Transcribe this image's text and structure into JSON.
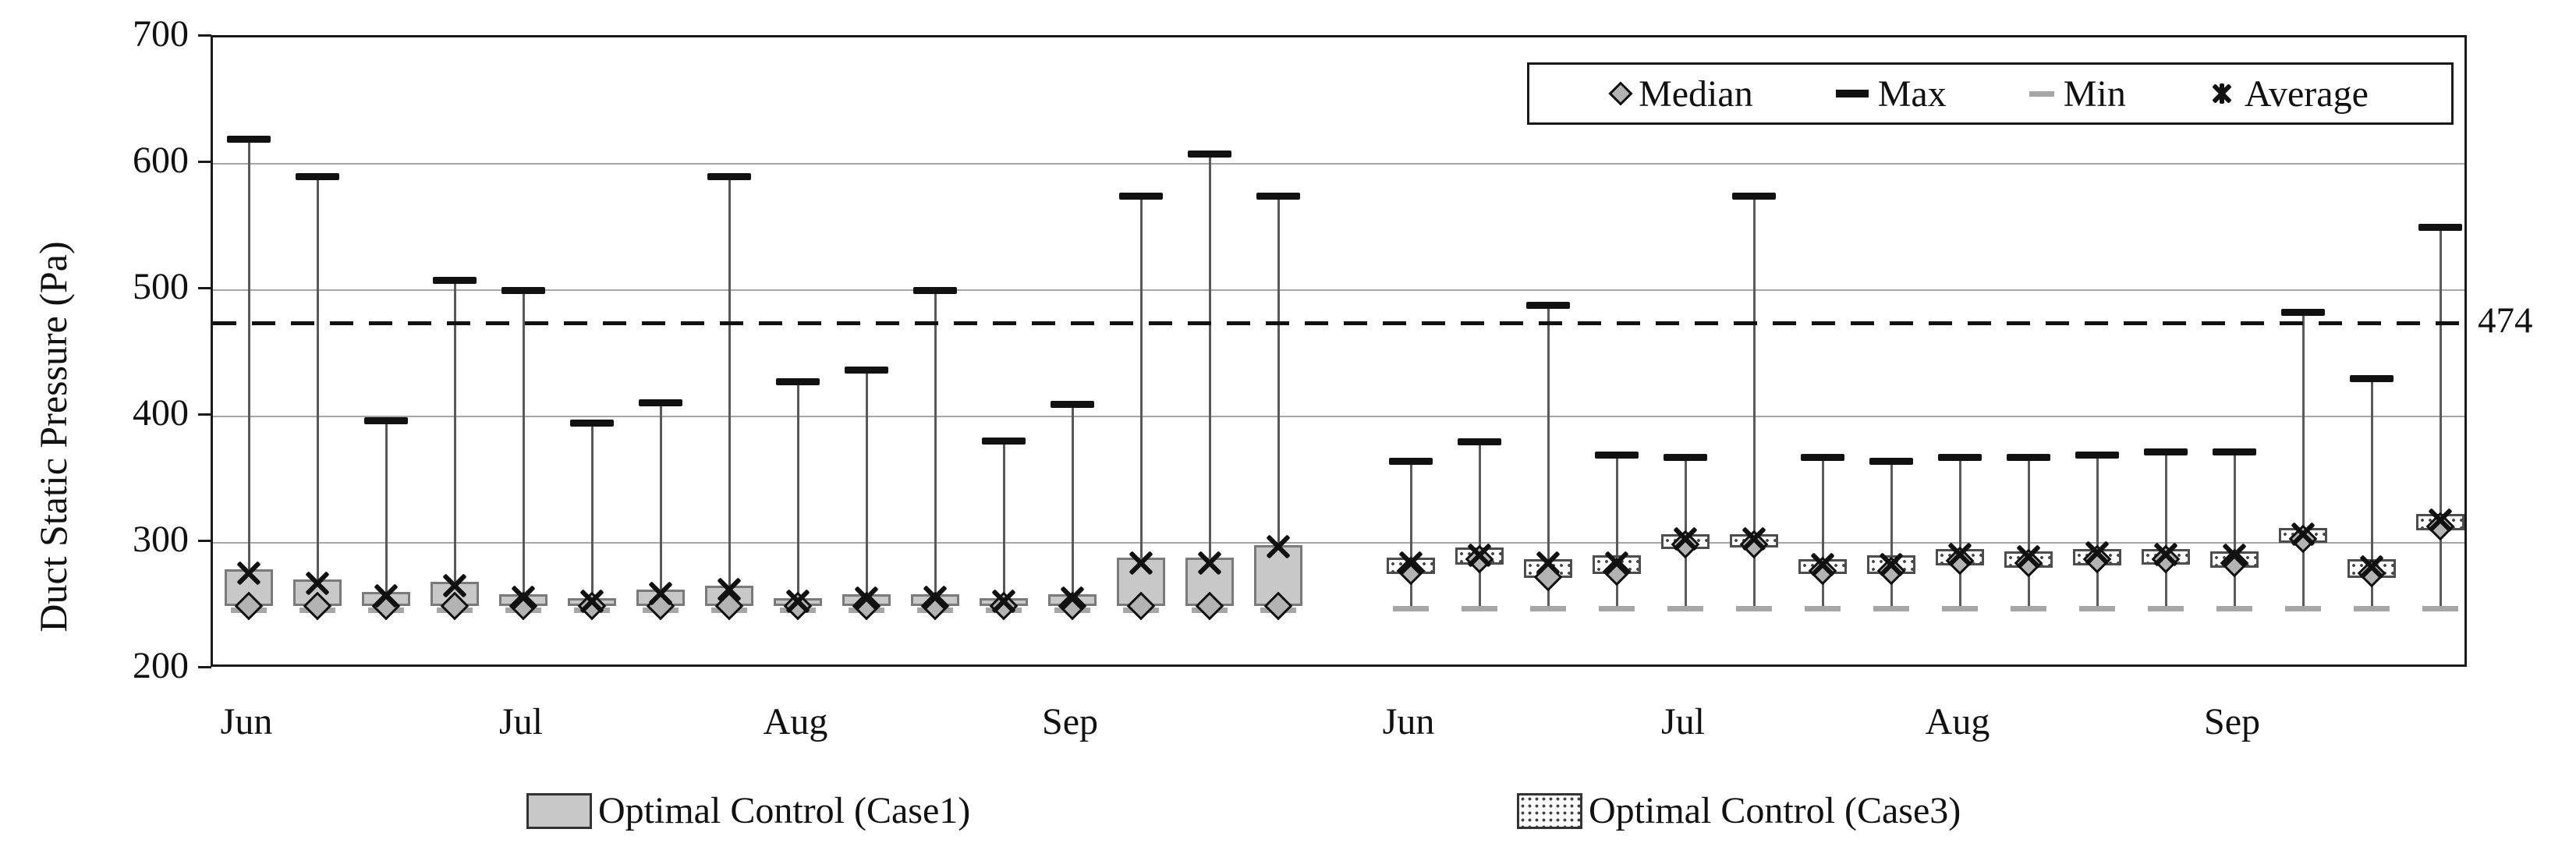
{
  "y_axis": {
    "title": "Duct Static Pressure (Pa)",
    "ticks": [
      700,
      600,
      500,
      400,
      300,
      200
    ]
  },
  "threshold": {
    "value": 474,
    "label": "474"
  },
  "marker_legend": {
    "items": [
      {
        "label": "Median",
        "marker": "median-diamond"
      },
      {
        "label": "Max",
        "marker": "max-dash"
      },
      {
        "label": "Min",
        "marker": "min-dash"
      },
      {
        "label": "Average",
        "marker": "average-asterisk"
      }
    ]
  },
  "series_legend": [
    {
      "label": "Optimal Control (Case1)",
      "pattern": "gray-fill"
    },
    {
      "label": "Optimal Control (Case3)",
      "pattern": "dotted-fill"
    }
  ],
  "colors": {
    "case1_fill": "#c8c8c8",
    "case1_border": "#7a7a7a",
    "case3_border": "#4d4d4d",
    "whisker": "#595959",
    "max_marker": "#111111",
    "min_marker": "#a6a6a6",
    "median_fill": "#b3b3b3",
    "median_border": "#111111",
    "average_marker": "#111111",
    "gridline": "#a6a6a6",
    "axis": "#1a1a1a"
  },
  "chart_data": {
    "type": "boxplot",
    "title": "",
    "xlabel": "",
    "ylabel": "Duct Static Pressure (Pa)",
    "ylim": [
      200,
      700
    ],
    "yticks": [
      200,
      300,
      400,
      500,
      600,
      700
    ],
    "grid": "horizontal",
    "legend_position": "top-right",
    "threshold_line": {
      "value": 474,
      "label": "474",
      "style": "dashed"
    },
    "groups": [
      {
        "name": "Optimal Control (Case1)",
        "month_labels": [
          "Jun",
          "Jul",
          "Aug",
          "Sep"
        ],
        "month_label_box_index": [
          0,
          4,
          8,
          12
        ],
        "boxes": [
          {
            "min": 247,
            "q1": 250,
            "median": 250,
            "q3": 279,
            "average": 276,
            "max": 620
          },
          {
            "min": 247,
            "q1": 250,
            "median": 250,
            "q3": 271,
            "average": 268,
            "max": 590
          },
          {
            "min": 247,
            "q1": 250,
            "median": 250,
            "q3": 261,
            "average": 258,
            "max": 397
          },
          {
            "min": 247,
            "q1": 250,
            "median": 250,
            "q3": 269,
            "average": 266,
            "max": 508
          },
          {
            "min": 247,
            "q1": 250,
            "median": 250,
            "q3": 259,
            "average": 257,
            "max": 500
          },
          {
            "min": 247,
            "q1": 250,
            "median": 250,
            "q3": 256,
            "average": 254,
            "max": 395
          },
          {
            "min": 247,
            "q1": 250,
            "median": 250,
            "q3": 263,
            "average": 260,
            "max": 411
          },
          {
            "min": 247,
            "q1": 250,
            "median": 250,
            "q3": 266,
            "average": 263,
            "max": 590
          },
          {
            "min": 247,
            "q1": 250,
            "median": 250,
            "q3": 256,
            "average": 254,
            "max": 428
          },
          {
            "min": 247,
            "q1": 250,
            "median": 250,
            "q3": 259,
            "average": 256,
            "max": 437
          },
          {
            "min": 247,
            "q1": 250,
            "median": 250,
            "q3": 259,
            "average": 257,
            "max": 500
          },
          {
            "min": 247,
            "q1": 250,
            "median": 250,
            "q3": 256,
            "average": 254,
            "max": 381
          },
          {
            "min": 247,
            "q1": 250,
            "median": 250,
            "q3": 259,
            "average": 256,
            "max": 410
          },
          {
            "min": 247,
            "q1": 250,
            "median": 250,
            "q3": 288,
            "average": 284,
            "max": 575
          },
          {
            "min": 247,
            "q1": 250,
            "median": 250,
            "q3": 288,
            "average": 284,
            "max": 608
          },
          {
            "min": 247,
            "q1": 250,
            "median": 250,
            "q3": 298,
            "average": 297,
            "max": 575
          }
        ]
      },
      {
        "name": "Optimal Control (Case3)",
        "month_labels": [
          "Jun",
          "Jul",
          "Aug",
          "Sep"
        ],
        "month_label_box_index": [
          0,
          4,
          8,
          12
        ],
        "boxes": [
          {
            "min": 248,
            "q1": 275,
            "median": 278,
            "q3": 288,
            "average": 284,
            "max": 365
          },
          {
            "min": 248,
            "q1": 283,
            "median": 287,
            "q3": 296,
            "average": 290,
            "max": 380
          },
          {
            "min": 248,
            "q1": 272,
            "median": 273,
            "q3": 287,
            "average": 284,
            "max": 488
          },
          {
            "min": 248,
            "q1": 275,
            "median": 277,
            "q3": 290,
            "average": 284,
            "max": 370
          },
          {
            "min": 248,
            "q1": 295,
            "median": 299,
            "q3": 307,
            "average": 303,
            "max": 368
          },
          {
            "min": 248,
            "q1": 296,
            "median": 299,
            "q3": 307,
            "average": 303,
            "max": 575
          },
          {
            "min": 248,
            "q1": 275,
            "median": 278,
            "q3": 287,
            "average": 283,
            "max": 368
          },
          {
            "min": 248,
            "q1": 275,
            "median": 278,
            "q3": 290,
            "average": 283,
            "max": 365
          },
          {
            "min": 248,
            "q1": 282,
            "median": 286,
            "q3": 295,
            "average": 291,
            "max": 368
          },
          {
            "min": 248,
            "q1": 280,
            "median": 284,
            "q3": 293,
            "average": 289,
            "max": 368
          },
          {
            "min": 248,
            "q1": 282,
            "median": 287,
            "q3": 295,
            "average": 292,
            "max": 370
          },
          {
            "min": 248,
            "q1": 283,
            "median": 287,
            "q3": 295,
            "average": 291,
            "max": 372
          },
          {
            "min": 248,
            "q1": 280,
            "median": 284,
            "q3": 293,
            "average": 290,
            "max": 372
          },
          {
            "min": 248,
            "q1": 300,
            "median": 303,
            "q3": 312,
            "average": 307,
            "max": 483
          },
          {
            "min": 248,
            "q1": 272,
            "median": 276,
            "q3": 287,
            "average": 281,
            "max": 430
          },
          {
            "min": 248,
            "q1": 310,
            "median": 313,
            "q3": 323,
            "average": 318,
            "max": 550
          }
        ]
      }
    ]
  }
}
